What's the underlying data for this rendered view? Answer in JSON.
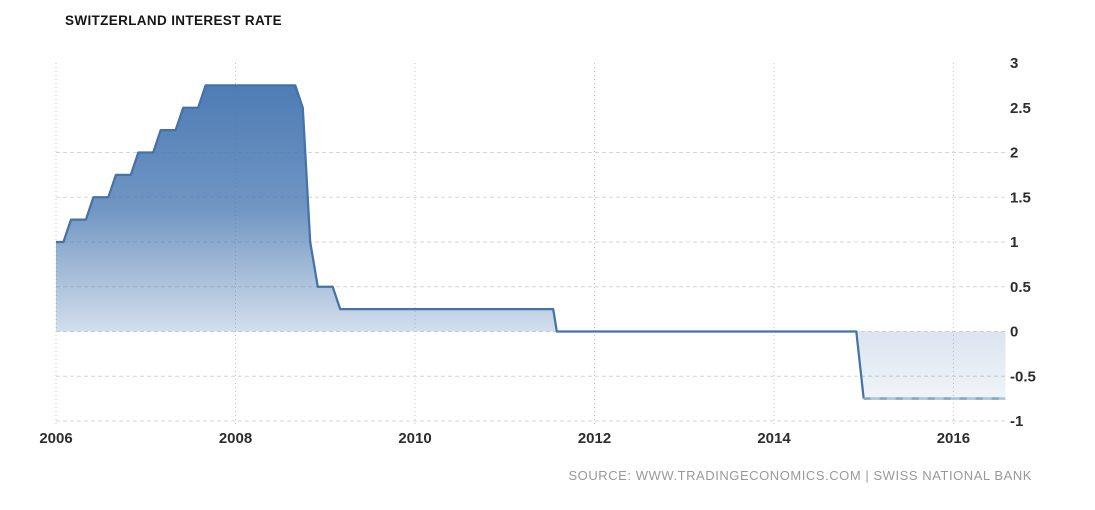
{
  "header": {
    "title": "SWITZERLAND INTEREST RATE"
  },
  "footer": {
    "source": "SOURCE:  WWW.TRADINGECONOMICS.COM  |  SWISS NATIONAL BANK"
  },
  "chart_data": {
    "type": "area",
    "title": "SWITZERLAND INTEREST RATE",
    "xlabel": "",
    "ylabel": "",
    "legend": "none",
    "grid": "dashed",
    "x_range": [
      2006.0,
      2016.58
    ],
    "ylim": [
      -1,
      3
    ],
    "x_ticks": [
      2006,
      2008,
      2010,
      2012,
      2014,
      2016
    ],
    "y_ticks": [
      3,
      2.5,
      2,
      1.5,
      1,
      0.5,
      0,
      -0.5,
      -1
    ],
    "y_gridlines": [
      2,
      1.5,
      1,
      0.5,
      0,
      -0.5,
      -1
    ],
    "series": [
      {
        "name": "Switzerland Interest Rate (%)",
        "points": [
          [
            2006.0,
            1.0
          ],
          [
            2006.083,
            1.0
          ],
          [
            2006.167,
            1.25
          ],
          [
            2006.333,
            1.25
          ],
          [
            2006.417,
            1.5
          ],
          [
            2006.583,
            1.5
          ],
          [
            2006.667,
            1.75
          ],
          [
            2006.833,
            1.75
          ],
          [
            2006.917,
            2.0
          ],
          [
            2007.083,
            2.0
          ],
          [
            2007.167,
            2.25
          ],
          [
            2007.333,
            2.25
          ],
          [
            2007.417,
            2.5
          ],
          [
            2007.583,
            2.5
          ],
          [
            2007.667,
            2.75
          ],
          [
            2008.667,
            2.75
          ],
          [
            2008.75,
            2.5
          ],
          [
            2008.833,
            1.0
          ],
          [
            2008.917,
            0.5
          ],
          [
            2009.083,
            0.5
          ],
          [
            2009.167,
            0.25
          ],
          [
            2011.54,
            0.25
          ],
          [
            2011.58,
            0.0
          ],
          [
            2014.917,
            0.0
          ],
          [
            2015.0,
            -0.75
          ],
          [
            2016.58,
            -0.75
          ]
        ]
      }
    ],
    "colors": {
      "line": "#4572a7",
      "line_negative": "#a9c5dc",
      "fill_base": "#4878b2",
      "grid_dash": "#d6d6d6",
      "grid_dot": "#c4c4c4",
      "axis_text": "#2d2d2d"
    }
  }
}
